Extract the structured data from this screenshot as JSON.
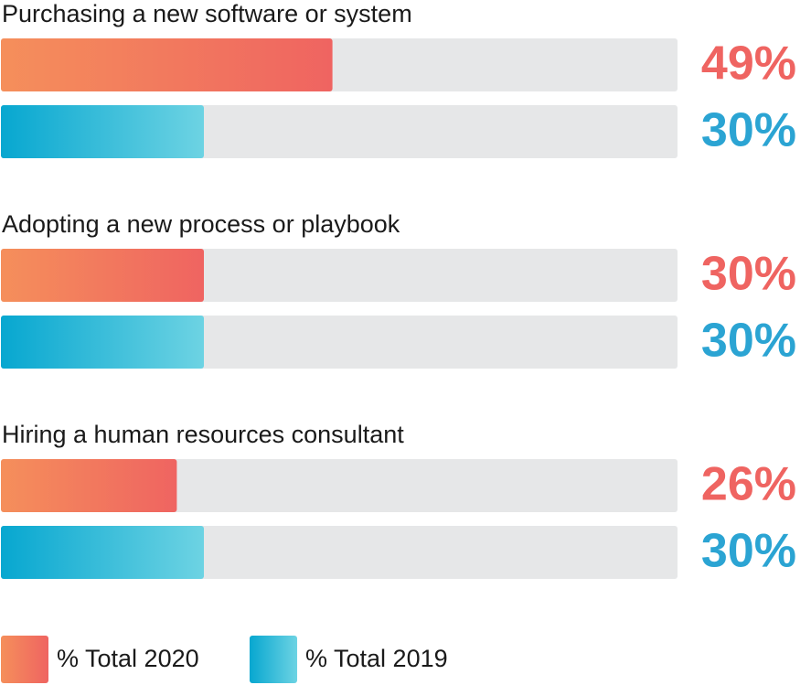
{
  "chart_data": {
    "type": "bar",
    "orientation": "horizontal",
    "categories": [
      "Purchasing a new software or system",
      "Adopting a new process or playbook",
      "Hiring a human resources consultant"
    ],
    "xlim": [
      0,
      100
    ],
    "series": [
      {
        "name": "% Total 2020",
        "color": "#ef6461",
        "gradient": [
          "#f58f5b",
          "#ef6461"
        ],
        "values": [
          49,
          30,
          26
        ],
        "value_labels": [
          "49%",
          "30%",
          "26%"
        ]
      },
      {
        "name": "% Total 2019",
        "color": "#2ba4d3",
        "gradient": [
          "#07a7d0",
          "#6dd3e3"
        ],
        "values": [
          30,
          30,
          30
        ],
        "value_labels": [
          "30%",
          "30%",
          "30%"
        ]
      }
    ]
  }
}
